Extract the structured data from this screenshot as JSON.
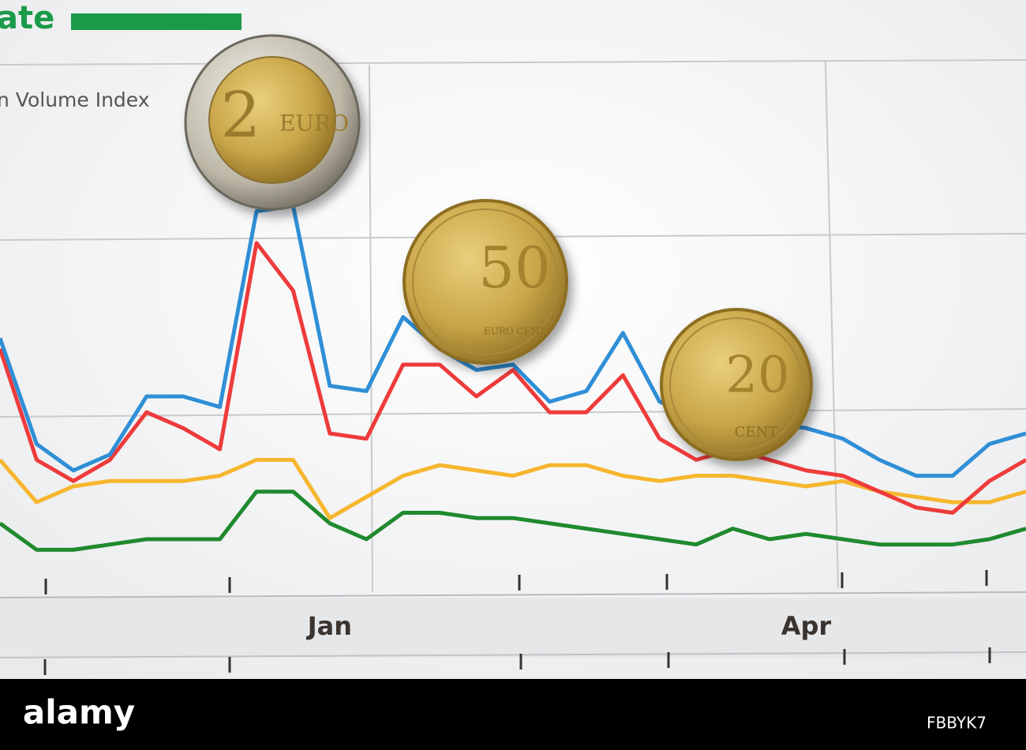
{
  "chart_data": {
    "type": "line",
    "title": "ate",
    "subtitle": "n Volume Index",
    "categories": [
      null,
      null,
      null,
      null,
      null,
      null,
      null,
      null,
      null,
      "Jan",
      null,
      null,
      null,
      null,
      null,
      null,
      null,
      null,
      null,
      null,
      null,
      null,
      "Apr",
      null,
      null,
      null,
      null,
      null,
      null
    ],
    "ylim": [
      0,
      100
    ],
    "series": [
      {
        "color": "#2f8fd6",
        "values": [
          48,
          28,
          23,
          26,
          37,
          37,
          35,
          72,
          73,
          39,
          38,
          52,
          46,
          42,
          43,
          36,
          38,
          49,
          36,
          33,
          33,
          32,
          31,
          29,
          25,
          22,
          22,
          28,
          30
        ]
      },
      {
        "color": "#ee3b3b",
        "values": [
          46,
          25,
          21,
          25,
          34,
          31,
          27,
          66,
          57,
          30,
          29,
          43,
          43,
          37,
          42,
          34,
          34,
          41,
          29,
          25,
          27,
          25,
          23,
          22,
          19,
          16,
          15,
          21,
          25
        ]
      },
      {
        "color": "#f6b62e",
        "values": [
          25,
          17,
          20,
          21,
          21,
          21,
          22,
          25,
          25,
          14,
          18,
          22,
          24,
          23,
          22,
          24,
          24,
          22,
          21,
          22,
          22,
          21,
          20,
          21,
          19,
          18,
          17,
          17,
          19
        ]
      },
      {
        "color": "#1f8a2e",
        "values": [
          13,
          8,
          8,
          9,
          10,
          10,
          10,
          19,
          19,
          13,
          10,
          15,
          15,
          14,
          14,
          13,
          12,
          11,
          10,
          9,
          12,
          10,
          11,
          10,
          9,
          9,
          9,
          10,
          12
        ]
      }
    ]
  },
  "coins": [
    {
      "value": "2",
      "unit": "EURO"
    },
    {
      "value": "50",
      "unit": "EURO CENT"
    },
    {
      "value": "20",
      "unit": "CENT"
    }
  ],
  "watermark": {
    "brand": "alamy",
    "code": "FBBYK7"
  }
}
